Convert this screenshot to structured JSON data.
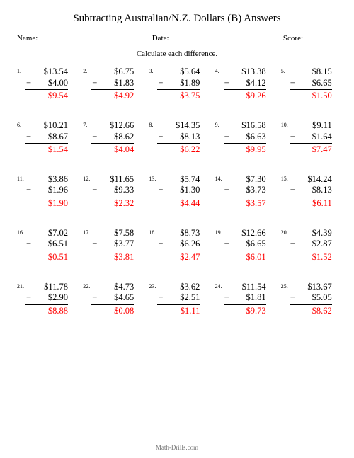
{
  "title": "Subtracting Australian/N.Z. Dollars (B) Answers",
  "meta": {
    "name_label": "Name:",
    "date_label": "Date:",
    "score_label": "Score:"
  },
  "instruction": "Calculate each difference.",
  "currency": "$",
  "minus_sign": "−",
  "answer_color": "#ff0000",
  "problems": [
    {
      "n": "1.",
      "a": "$13.54",
      "b": "$4.00",
      "ans": "$9.54"
    },
    {
      "n": "2.",
      "a": "$6.75",
      "b": "$1.83",
      "ans": "$4.92"
    },
    {
      "n": "3.",
      "a": "$5.64",
      "b": "$1.89",
      "ans": "$3.75"
    },
    {
      "n": "4.",
      "a": "$13.38",
      "b": "$4.12",
      "ans": "$9.26"
    },
    {
      "n": "5.",
      "a": "$8.15",
      "b": "$6.65",
      "ans": "$1.50"
    },
    {
      "n": "6.",
      "a": "$10.21",
      "b": "$8.67",
      "ans": "$1.54"
    },
    {
      "n": "7.",
      "a": "$12.66",
      "b": "$8.62",
      "ans": "$4.04"
    },
    {
      "n": "8.",
      "a": "$14.35",
      "b": "$8.13",
      "ans": "$6.22"
    },
    {
      "n": "9.",
      "a": "$16.58",
      "b": "$6.63",
      "ans": "$9.95"
    },
    {
      "n": "10.",
      "a": "$9.11",
      "b": "$1.64",
      "ans": "$7.47"
    },
    {
      "n": "11.",
      "a": "$3.86",
      "b": "$1.96",
      "ans": "$1.90"
    },
    {
      "n": "12.",
      "a": "$11.65",
      "b": "$9.33",
      "ans": "$2.32"
    },
    {
      "n": "13.",
      "a": "$5.74",
      "b": "$1.30",
      "ans": "$4.44"
    },
    {
      "n": "14.",
      "a": "$7.30",
      "b": "$3.73",
      "ans": "$3.57"
    },
    {
      "n": "15.",
      "a": "$14.24",
      "b": "$8.13",
      "ans": "$6.11"
    },
    {
      "n": "16.",
      "a": "$7.02",
      "b": "$6.51",
      "ans": "$0.51"
    },
    {
      "n": "17.",
      "a": "$7.58",
      "b": "$3.77",
      "ans": "$3.81"
    },
    {
      "n": "18.",
      "a": "$8.73",
      "b": "$6.26",
      "ans": "$2.47"
    },
    {
      "n": "19.",
      "a": "$12.66",
      "b": "$6.65",
      "ans": "$6.01"
    },
    {
      "n": "20.",
      "a": "$4.39",
      "b": "$2.87",
      "ans": "$1.52"
    },
    {
      "n": "21.",
      "a": "$11.78",
      "b": "$2.90",
      "ans": "$8.88"
    },
    {
      "n": "22.",
      "a": "$4.73",
      "b": "$4.65",
      "ans": "$0.08"
    },
    {
      "n": "23.",
      "a": "$3.62",
      "b": "$2.51",
      "ans": "$1.11"
    },
    {
      "n": "24.",
      "a": "$11.54",
      "b": "$1.81",
      "ans": "$9.73"
    },
    {
      "n": "25.",
      "a": "$13.67",
      "b": "$5.05",
      "ans": "$8.62"
    }
  ],
  "footer": "Math-Drills.com"
}
